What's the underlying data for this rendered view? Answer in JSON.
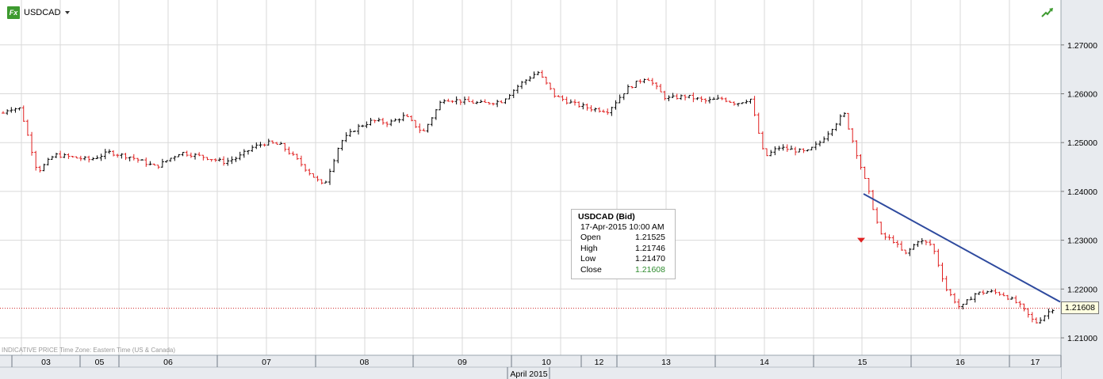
{
  "header": {
    "fx_label": "Fx",
    "symbol": "USDCAD"
  },
  "footer_note": "INDICATIVE PRICE   Time Zone: Eastern Time (US & Canada)",
  "tooltip": {
    "title": "USDCAD (Bid)",
    "datetime": "17-Apr-2015 10:00 AM",
    "rows": [
      {
        "label": "Open",
        "value": "1.21525"
      },
      {
        "label": "High",
        "value": "1.21746"
      },
      {
        "label": "Low",
        "value": "1.21470"
      },
      {
        "label": "Close",
        "value": "1.21608"
      }
    ]
  },
  "last_price": "1.21608",
  "colors": {
    "up": "#000000",
    "down": "#e02020",
    "trendline": "#2e4a9e",
    "grid": "#d9d9d9",
    "axis_bg": "#e8ebef",
    "fx_icon": "#3d9a2f",
    "close_value": "#2e8b2e"
  },
  "chart_data": {
    "type": "ohlc",
    "title": "USDCAD",
    "grid": true,
    "y_axis": {
      "position": "right",
      "range": [
        1.2083,
        1.2778
      ],
      "ticks": [
        "1.21000",
        "1.22000",
        "1.23000",
        "1.24000",
        "1.25000",
        "1.26000",
        "1.27000"
      ]
    },
    "x_axis": {
      "month_label": "April 2015",
      "days": [
        "03",
        "05",
        "06",
        "07",
        "08",
        "09",
        "10",
        "12",
        "13",
        "14",
        "15",
        "16",
        "17"
      ]
    },
    "last_close_line": 1.21608,
    "trendline": {
      "from": {
        "day": "15",
        "price": 1.2395
      },
      "to": {
        "day": "17",
        "price": 1.2185
      }
    },
    "series_anchors": [
      [
        "02",
        1.256
      ],
      [
        "02",
        1.257
      ],
      [
        "03",
        1.257
      ],
      [
        "03",
        1.244
      ],
      [
        "03",
        1.2475
      ],
      [
        "03",
        1.247
      ],
      [
        "05",
        1.2465
      ],
      [
        "05",
        1.248
      ],
      [
        "06",
        1.247
      ],
      [
        "06",
        1.245
      ],
      [
        "06",
        1.248
      ],
      [
        "06",
        1.247
      ],
      [
        "07",
        1.246
      ],
      [
        "07",
        1.247
      ],
      [
        "07",
        1.249
      ],
      [
        "07",
        1.25
      ],
      [
        "07",
        1.2495
      ],
      [
        "07",
        1.247
      ],
      [
        "07",
        1.244
      ],
      [
        "08",
        1.241
      ],
      [
        "08",
        1.25
      ],
      [
        "08",
        1.253
      ],
      [
        "08",
        1.2545
      ],
      [
        "08",
        1.254
      ],
      [
        "08",
        1.2555
      ],
      [
        "09",
        1.252
      ],
      [
        "09",
        1.259
      ],
      [
        "09",
        1.2585
      ],
      [
        "09",
        1.258
      ],
      [
        "09",
        1.2585
      ],
      [
        "10",
        1.262
      ],
      [
        "10",
        1.2645
      ],
      [
        "10",
        1.2595
      ],
      [
        "10",
        1.258
      ],
      [
        "12",
        1.257
      ],
      [
        "12",
        1.2565
      ],
      [
        "13",
        1.261
      ],
      [
        "13",
        1.2635
      ],
      [
        "13",
        1.259
      ],
      [
        "13",
        1.2595
      ],
      [
        "13",
        1.2585
      ],
      [
        "14",
        1.259
      ],
      [
        "14",
        1.258
      ],
      [
        "14",
        1.259
      ],
      [
        "14",
        1.247
      ],
      [
        "14",
        1.249
      ],
      [
        "14",
        1.2485
      ],
      [
        "14",
        1.248
      ],
      [
        "15",
        1.25
      ],
      [
        "15",
        1.253
      ],
      [
        "15",
        1.256
      ],
      [
        "15",
        1.248
      ],
      [
        "15",
        1.24
      ],
      [
        "15",
        1.231
      ],
      [
        "15",
        1.23
      ],
      [
        "15",
        1.227
      ],
      [
        "16",
        1.23
      ],
      [
        "16",
        1.229
      ],
      [
        "16",
        1.22
      ],
      [
        "16",
        1.216
      ],
      [
        "16",
        1.219
      ],
      [
        "16",
        1.2195
      ],
      [
        "16",
        1.219
      ],
      [
        "17",
        1.217
      ],
      [
        "17",
        1.213
      ],
      [
        "17",
        1.216
      ]
    ]
  }
}
